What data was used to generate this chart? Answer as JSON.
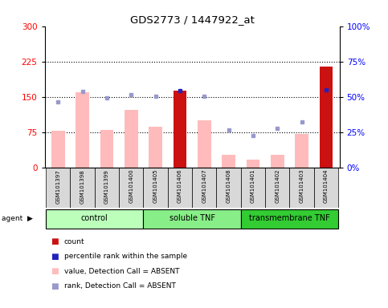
{
  "title": "GDS2773 / 1447922_at",
  "samples": [
    "GSM101397",
    "GSM101398",
    "GSM101399",
    "GSM101400",
    "GSM101405",
    "GSM101406",
    "GSM101407",
    "GSM101408",
    "GSM101401",
    "GSM101402",
    "GSM101403",
    "GSM101404"
  ],
  "groups": [
    {
      "name": "control",
      "start": 0,
      "end": 3,
      "color": "#bbffbb"
    },
    {
      "name": "soluble TNF",
      "start": 4,
      "end": 7,
      "color": "#88ee88"
    },
    {
      "name": "transmembrane TNF",
      "start": 8,
      "end": 11,
      "color": "#33cc33"
    }
  ],
  "bar_values": [
    78,
    160,
    80,
    122,
    87,
    163,
    100,
    28,
    17,
    28,
    72,
    215
  ],
  "bar_is_red": [
    false,
    false,
    false,
    false,
    false,
    true,
    false,
    false,
    false,
    false,
    false,
    true
  ],
  "dot_values": [
    140,
    162,
    148,
    155,
    151,
    163,
    151,
    80,
    68,
    83,
    98,
    165
  ],
  "dot_is_blue": [
    false,
    false,
    false,
    false,
    false,
    true,
    false,
    false,
    false,
    false,
    false,
    true
  ],
  "left_ylim": [
    0,
    300
  ],
  "left_yticks": [
    0,
    75,
    150,
    225,
    300
  ],
  "right_ylim": [
    0,
    100
  ],
  "right_yticks": [
    0,
    25,
    50,
    75,
    100
  ],
  "right_tick_labels": [
    "0%",
    "25%",
    "50%",
    "75%",
    "100%"
  ],
  "dotted_lines": [
    75,
    150,
    225
  ],
  "pink_bar_color": "#ffbbbb",
  "red_bar_color": "#cc1111",
  "blue_dot_color": "#2222bb",
  "light_blue_dot_color": "#9999cc",
  "sample_box_color": "#d8d8d8",
  "legend": [
    {
      "color": "#cc1111",
      "label": "count"
    },
    {
      "color": "#2222bb",
      "label": "percentile rank within the sample"
    },
    {
      "color": "#ffbbbb",
      "label": "value, Detection Call = ABSENT"
    },
    {
      "color": "#9999cc",
      "label": "rank, Detection Call = ABSENT"
    }
  ]
}
